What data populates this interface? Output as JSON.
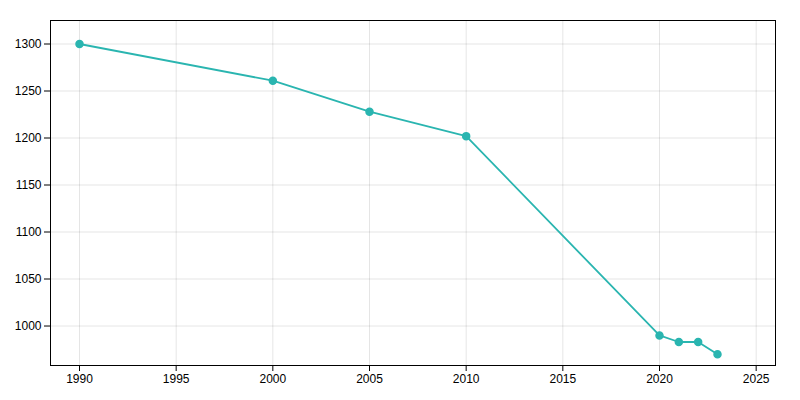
{
  "chart_data": {
    "type": "line",
    "x": [
      1990,
      2000,
      2005,
      2010,
      2020,
      2021,
      2022,
      2023
    ],
    "values": [
      1300,
      1261,
      1228,
      1202,
      990,
      983,
      983,
      970
    ],
    "color": "#2ab5b0",
    "marker": "circle",
    "xlim": [
      1988.5,
      2026
    ],
    "ylim": [
      958,
      1325
    ],
    "xticks": [
      1990,
      1995,
      2000,
      2005,
      2010,
      2015,
      2020,
      2025
    ],
    "yticks": [
      1000,
      1050,
      1100,
      1150,
      1200,
      1250,
      1300
    ],
    "grid": true
  }
}
